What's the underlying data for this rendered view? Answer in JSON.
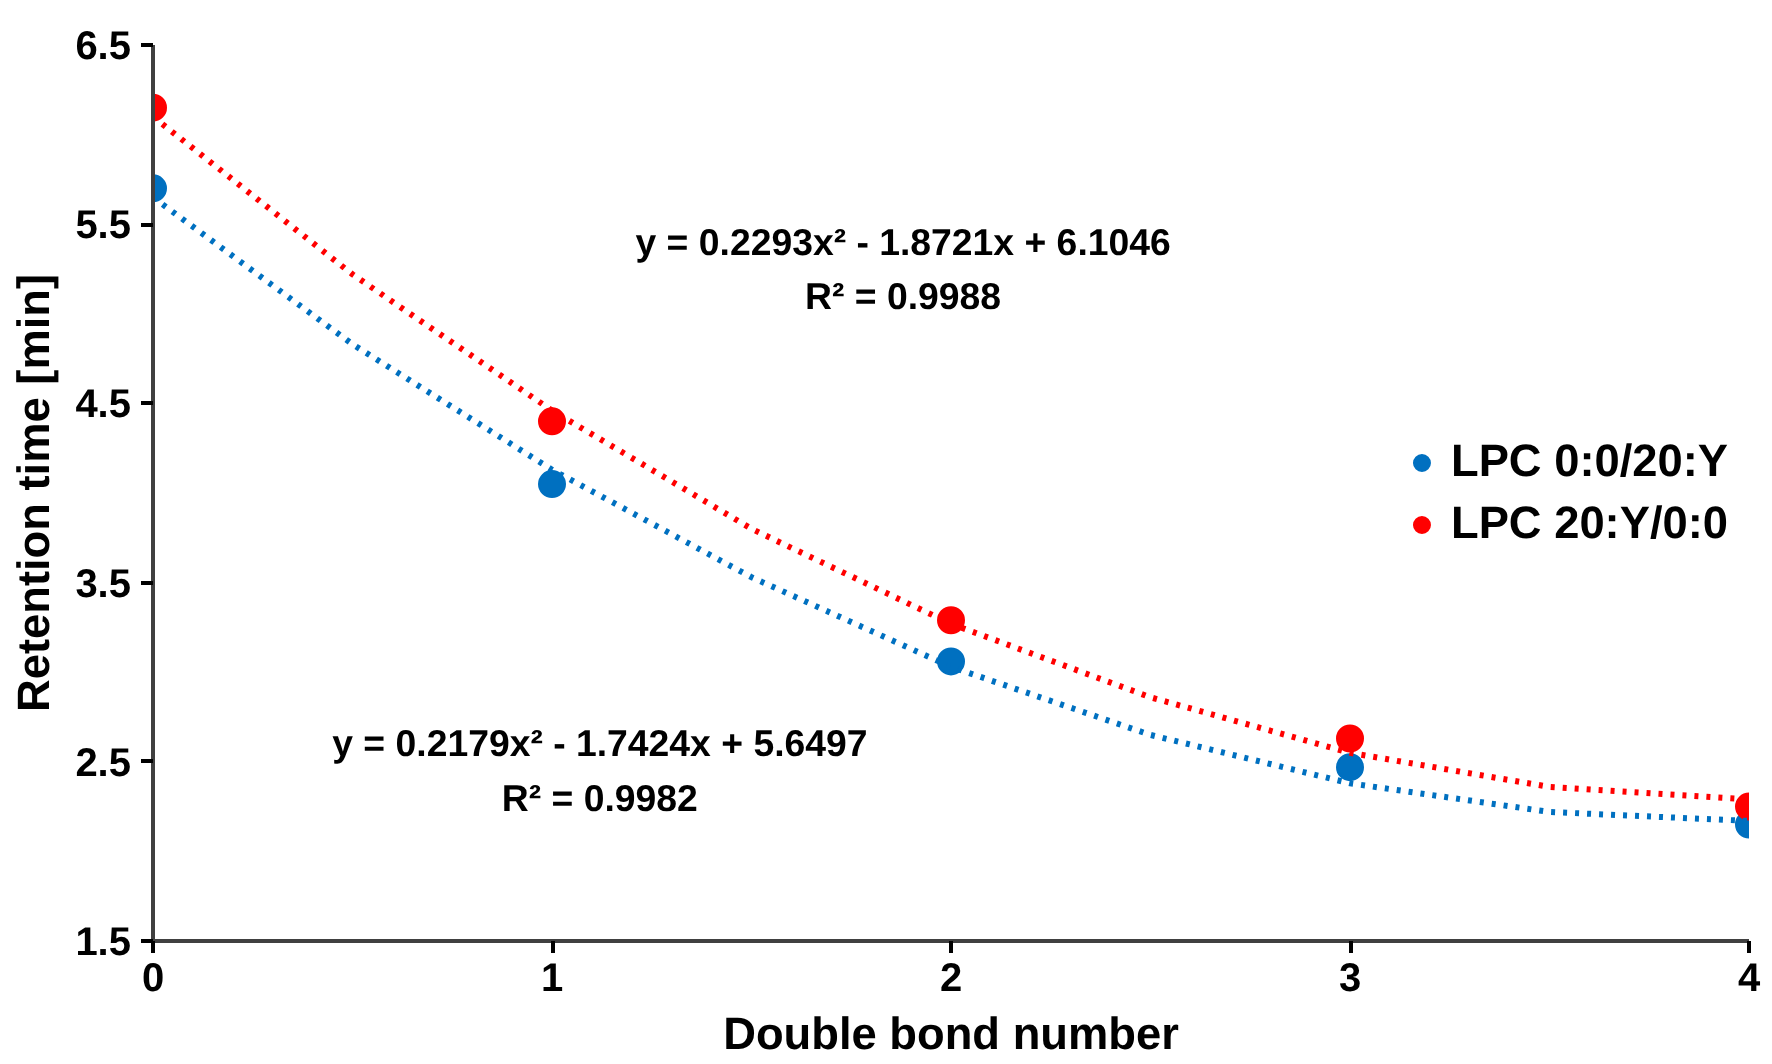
{
  "chart_data": {
    "type": "scatter",
    "xlabel": "Double bond number",
    "ylabel": "Retention time [min]",
    "x": [
      0,
      1,
      2,
      3,
      4
    ],
    "series": [
      {
        "name": "LPC 0:0/20:Y",
        "color": "#0070c0",
        "marker": "circle",
        "values": [
          5.7,
          4.05,
          3.06,
          2.47,
          2.15
        ]
      },
      {
        "name": "LPC 20:Y/0:0",
        "color": "#ff0000",
        "marker": "circle",
        "values": [
          6.15,
          4.4,
          3.29,
          2.63,
          2.25
        ]
      },
      {
        "type": "line",
        "color": "#0070c0",
        "line_style": "dotted",
        "x": [
          0,
          0.5,
          1,
          1.5,
          2,
          2.5,
          3,
          3.5,
          4
        ],
        "values": [
          5.65,
          4.83,
          4.13,
          3.53,
          3.03,
          2.65,
          2.38,
          2.22,
          2.17
        ]
      },
      {
        "type": "line",
        "color": "#ff0000",
        "line_style": "dotted",
        "x": [
          0,
          0.5,
          1,
          1.5,
          2,
          2.5,
          3,
          3.5,
          4
        ],
        "values": [
          6.1,
          5.22,
          4.46,
          3.8,
          3.27,
          2.86,
          2.55,
          2.36,
          2.29
        ]
      }
    ],
    "annotations": [
      "y = 0.2293x² - 1.8721x + 6.1046\nR² = 0.9988",
      "y = 0.2179x² - 1.7424x + 5.6497\nR² = 0.9982"
    ],
    "xlim": [
      0,
      4
    ],
    "xticks": [
      0,
      1,
      2,
      3,
      4
    ],
    "ylim": [
      1.5,
      6.5
    ],
    "yticks": [
      1.5,
      2.5,
      3.5,
      4.5,
      5.5,
      6.5
    ],
    "grid": false,
    "legend": "right"
  }
}
